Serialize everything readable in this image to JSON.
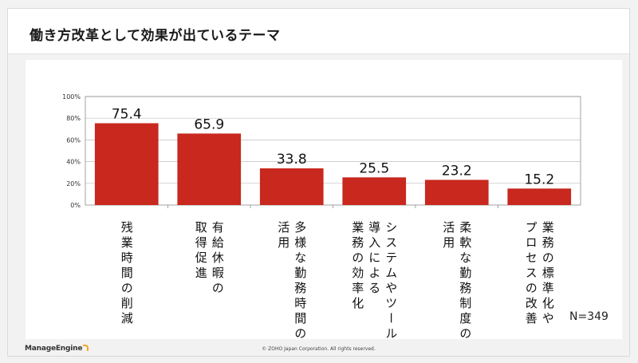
{
  "title": "働き方改革として効果が出ているテーマ",
  "footer": {
    "brand": "ManageEngine",
    "copyright": "© ZOHO Japan Corporation. All rights reserved."
  },
  "chart_data": {
    "type": "bar",
    "categories": [
      "残業時間の削減",
      "有給休暇の取得促進",
      "多様な勤務時間の活用",
      "システムやツール導入による業務の効率化",
      "柔軟な勤務制度の活用",
      "業務の標準化やプロセスの改善"
    ],
    "category_lines": [
      [
        "残業時間の削減"
      ],
      [
        "有給休暇の",
        "取得促進"
      ],
      [
        "多様な勤務時間の",
        "活用"
      ],
      [
        "システムやツール",
        "導入による",
        "業務の効率化"
      ],
      [
        "柔軟な勤務制度の",
        "活用"
      ],
      [
        "業務の標準化や",
        "プロセスの改善"
      ]
    ],
    "values": [
      75.4,
      65.9,
      33.8,
      25.5,
      23.2,
      15.2
    ],
    "data_labels": [
      "75.4",
      "65.9",
      "33.8",
      "25.5",
      "23.2",
      "15.2"
    ],
    "yticks": [
      "0%",
      "20%",
      "40%",
      "60%",
      "80%",
      "100%"
    ],
    "ylim": [
      0,
      100
    ],
    "grid": true,
    "bar_color": "#c8281e",
    "annotation": "N=349"
  }
}
